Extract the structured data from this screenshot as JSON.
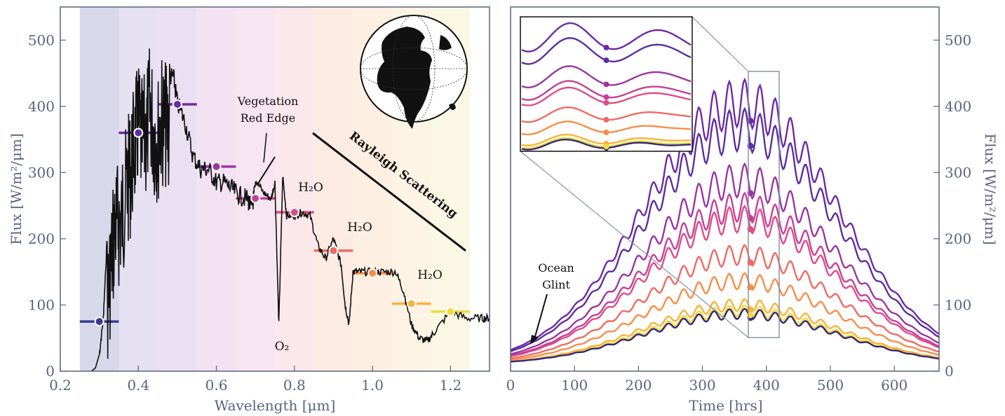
{
  "chart_data": [
    {
      "type": "line",
      "xlabel": "Wavelength [μm]",
      "ylabel": "Flux [W/m²/μm]",
      "xlim": [
        0.2,
        1.3
      ],
      "ylim": [
        0,
        550
      ],
      "xticks": [
        "0.2",
        "0.4",
        "0.6",
        "0.8",
        "1.0",
        "1.2"
      ],
      "yticks": [
        "0",
        "100",
        "200",
        "300",
        "400",
        "500"
      ],
      "grid": false,
      "bands": [
        {
          "from": 0.25,
          "to": 0.35,
          "color": "#c9cbe2"
        },
        {
          "from": 0.35,
          "to": 0.45,
          "color": "#dcd6ee"
        },
        {
          "from": 0.45,
          "to": 0.55,
          "color": "#e4d4ee"
        },
        {
          "from": 0.55,
          "to": 0.65,
          "color": "#eed8ee"
        },
        {
          "from": 0.65,
          "to": 0.75,
          "color": "#f4dcee"
        },
        {
          "from": 0.75,
          "to": 0.85,
          "color": "#f9e0e4"
        },
        {
          "from": 0.85,
          "to": 0.95,
          "color": "#fbe4da"
        },
        {
          "from": 0.95,
          "to": 1.05,
          "color": "#fdeada"
        },
        {
          "from": 1.05,
          "to": 1.15,
          "color": "#fdf0dc"
        },
        {
          "from": 1.15,
          "to": 1.25,
          "color": "#f8f5dc"
        }
      ],
      "spectrum": {
        "x": [
          0.28,
          0.29,
          0.3,
          0.31,
          0.32,
          0.33,
          0.34,
          0.35,
          0.36,
          0.37,
          0.38,
          0.39,
          0.4,
          0.41,
          0.42,
          0.43,
          0.44,
          0.45,
          0.46,
          0.47,
          0.48,
          0.49,
          0.5,
          0.52,
          0.54,
          0.56,
          0.58,
          0.6,
          0.62,
          0.64,
          0.66,
          0.68,
          0.69,
          0.7,
          0.72,
          0.74,
          0.75,
          0.76,
          0.77,
          0.78,
          0.8,
          0.82,
          0.84,
          0.86,
          0.88,
          0.9,
          0.92,
          0.93,
          0.94,
          0.95,
          0.97,
          1.0,
          1.03,
          1.06,
          1.08,
          1.1,
          1.12,
          1.14,
          1.16,
          1.2,
          1.24,
          1.28,
          1.3
        ],
        "y": [
          0,
          5,
          25,
          80,
          200,
          260,
          320,
          320,
          340,
          380,
          400,
          440,
          470,
          440,
          460,
          500,
          460,
          450,
          480,
          470,
          460,
          460,
          420,
          390,
          340,
          320,
          320,
          300,
          300,
          290,
          280,
          275,
          260,
          290,
          270,
          260,
          285,
          70,
          295,
          235,
          235,
          240,
          235,
          190,
          170,
          200,
          160,
          100,
          70,
          150,
          150,
          150,
          150,
          150,
          120,
          70,
          50,
          45,
          60,
          90,
          80,
          80,
          80
        ]
      },
      "band_averages": [
        {
          "x": 0.3,
          "y": 75,
          "color": "#3a3a90"
        },
        {
          "x": 0.4,
          "y": 360,
          "color": "#5b2fa0"
        },
        {
          "x": 0.5,
          "y": 403,
          "color": "#6e2aa6"
        },
        {
          "x": 0.6,
          "y": 309,
          "color": "#9a36a2"
        },
        {
          "x": 0.7,
          "y": 261,
          "color": "#c4409a"
        },
        {
          "x": 0.8,
          "y": 240,
          "color": "#de4c86"
        },
        {
          "x": 0.9,
          "y": 182,
          "color": "#f06a62"
        },
        {
          "x": 1.0,
          "y": 148,
          "color": "#f88d48"
        },
        {
          "x": 1.1,
          "y": 102,
          "color": "#fbb23a"
        },
        {
          "x": 1.2,
          "y": 90,
          "color": "#f0dc3c"
        }
      ],
      "annotations": {
        "red_edge": "Vegetation\nRed Edge",
        "rayleigh": "Rayleigh Scattering",
        "h2o_1": "H₂O",
        "h2o_2": "H₂O",
        "h2o_3": "H₂O",
        "o2": "O₂"
      }
    },
    {
      "type": "line",
      "xlabel": "Time [hrs]",
      "ylabel": "Flux [W/m²/μm]",
      "xlim": [
        0,
        670
      ],
      "ylim": [
        0,
        550
      ],
      "xticks": [
        "0",
        "100",
        "200",
        "300",
        "400",
        "500",
        "600"
      ],
      "yticks": [
        "0",
        "100",
        "200",
        "300",
        "400",
        "500"
      ],
      "grid": false,
      "annotation": "Ocean\nGlint",
      "peak_time": 360,
      "marker_time": 375,
      "series": [
        {
          "color": "#33277e",
          "peak": 85
        },
        {
          "color": "#5b2fa0",
          "peak": 385
        },
        {
          "color": "#6e2aa6",
          "peak": 430
        },
        {
          "color": "#9a36a2",
          "peak": 300
        },
        {
          "color": "#c4409a",
          "peak": 255
        },
        {
          "color": "#de4c86",
          "peak": 235
        },
        {
          "color": "#f06a62",
          "peak": 175
        },
        {
          "color": "#f88d48",
          "peak": 140
        },
        {
          "color": "#fbb23a",
          "peak": 100
        },
        {
          "color": "#f0dc3c",
          "peak": 90
        }
      ]
    }
  ]
}
